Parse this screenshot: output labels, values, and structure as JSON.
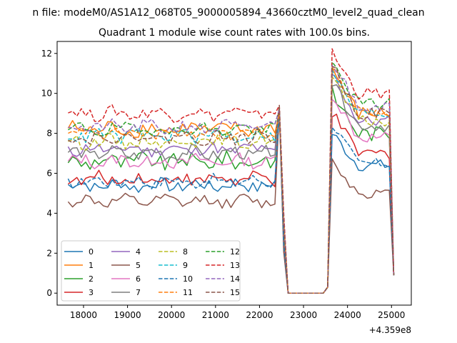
{
  "figure": {
    "suptitle": "n file: modeM0/AS1A12_068T05_9000005894_43660cztM0_level2_quad_clean",
    "background": "#ffffff"
  },
  "chart_data": {
    "type": "line",
    "title": "Quadrant 1 module wise count rates with 100.0s bins.",
    "xlabel": "",
    "ylabel": "",
    "x_offset_label": "+4.359e8",
    "xlim": [
      17400,
      25450
    ],
    "ylim": [
      -0.6,
      12.6
    ],
    "x_ticks": [
      18000,
      19000,
      20000,
      21000,
      22000,
      23000,
      24000,
      25000
    ],
    "x_tick_labels": [
      "18000",
      "19000",
      "20000",
      "21000",
      "22000",
      "23000",
      "24000",
      "25000"
    ],
    "y_ticks": [
      0,
      2,
      4,
      6,
      8,
      10,
      12
    ],
    "y_tick_labels": [
      "0",
      "2",
      "4",
      "6",
      "8",
      "10",
      "12"
    ],
    "grid": false,
    "legend_position": "lower-left",
    "x_segments": {
      "seg1_start": 17650,
      "seg1_end": 22450,
      "seg1_step": 100,
      "drop_x": [
        22550,
        22650
      ],
      "gap_zero_x": [
        22750,
        22850,
        22950,
        23050,
        23150,
        23250,
        23350,
        23450,
        23550
      ],
      "seg2_start": 23650,
      "seg2_end": 25050,
      "seg2_step": 100
    },
    "series": [
      {
        "name": "0",
        "color": "#1f77b4",
        "dash": "solid",
        "level1": 5.4,
        "level2": 6.4,
        "peak": 8.0,
        "spike": 9.0,
        "amp": 0.3
      },
      {
        "name": "1",
        "color": "#ff7f0e",
        "dash": "solid",
        "level1": 8.2,
        "level2": 9.0,
        "peak": 11.2,
        "spike": 9.0,
        "amp": 0.35
      },
      {
        "name": "2",
        "color": "#2ca02c",
        "dash": "solid",
        "level1": 6.6,
        "level2": 8.0,
        "peak": 10.0,
        "spike": 9.2,
        "amp": 0.4
      },
      {
        "name": "3",
        "color": "#d62728",
        "dash": "solid",
        "level1": 5.7,
        "level2": 7.0,
        "peak": 9.0,
        "spike": 9.0,
        "amp": 0.3
      },
      {
        "name": "4",
        "color": "#9467bd",
        "dash": "solid",
        "level1": 7.2,
        "level2": 8.6,
        "peak": 11.0,
        "spike": 9.1,
        "amp": 0.3
      },
      {
        "name": "5",
        "color": "#8c564b",
        "dash": "solid",
        "level1": 4.6,
        "level2": 5.0,
        "peak": 6.6,
        "spike": 9.3,
        "amp": 0.25
      },
      {
        "name": "6",
        "color": "#e377c2",
        "dash": "solid",
        "level1": 6.6,
        "level2": 7.8,
        "peak": 10.0,
        "spike": 9.1,
        "amp": 0.3
      },
      {
        "name": "7",
        "color": "#7f7f7f",
        "dash": "solid",
        "level1": 7.0,
        "level2": 8.4,
        "peak": 10.5,
        "spike": 9.2,
        "amp": 0.3
      },
      {
        "name": "8",
        "color": "#bcbd22",
        "dash": "dashed",
        "level1": 7.6,
        "level2": 8.6,
        "peak": 10.8,
        "spike": 9.0,
        "amp": 0.3
      },
      {
        "name": "9",
        "color": "#17becf",
        "dash": "dashed",
        "level1": 7.9,
        "level2": 9.0,
        "peak": 11.0,
        "spike": 9.0,
        "amp": 0.3
      },
      {
        "name": "10",
        "color": "#1f77b4",
        "dash": "dashed",
        "level1": 5.6,
        "level2": 6.5,
        "peak": 8.5,
        "spike": 9.1,
        "amp": 0.25
      },
      {
        "name": "11",
        "color": "#ff7f0e",
        "dash": "dashed",
        "level1": 8.0,
        "level2": 9.1,
        "peak": 11.3,
        "spike": 9.0,
        "amp": 0.3
      },
      {
        "name": "12",
        "color": "#2ca02c",
        "dash": "dashed",
        "level1": 8.2,
        "level2": 9.5,
        "peak": 11.5,
        "spike": 9.2,
        "amp": 0.3
      },
      {
        "name": "13",
        "color": "#d62728",
        "dash": "dashed",
        "level1": 9.0,
        "level2": 10.0,
        "peak": 12.0,
        "spike": 9.4,
        "amp": 0.3
      },
      {
        "name": "14",
        "color": "#9467bd",
        "dash": "dashed",
        "level1": 8.3,
        "level2": 9.4,
        "peak": 11.6,
        "spike": 9.2,
        "amp": 0.3
      },
      {
        "name": "15",
        "color": "#8c564b",
        "dash": "dashed",
        "level1": 7.8,
        "level2": 9.0,
        "peak": 11.4,
        "spike": 9.4,
        "amp": 0.3
      }
    ]
  }
}
